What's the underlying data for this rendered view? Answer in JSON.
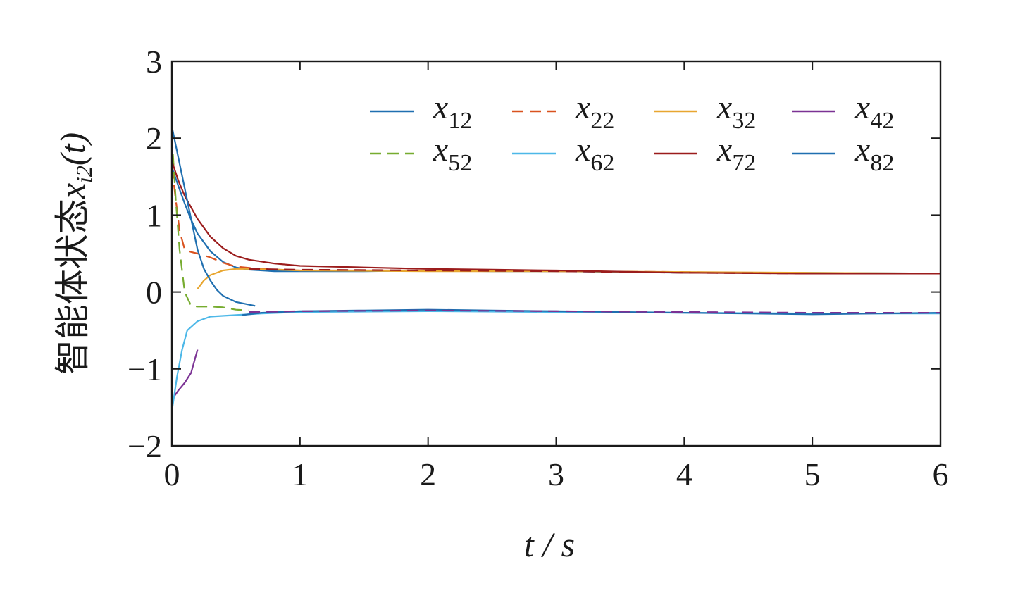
{
  "chart_data": {
    "type": "line",
    "title": "",
    "xlabel": "t / s",
    "ylabel": "智能体状态x_{i2}(t)",
    "ylabel_text": "智能体状态",
    "ylabel_symbol": "x",
    "ylabel_subscript": "i2",
    "ylabel_suffix": "(t)",
    "xlim": [
      0,
      6
    ],
    "ylim": [
      -2,
      3
    ],
    "xticks": [
      0,
      1,
      2,
      3,
      4,
      5,
      6
    ],
    "yticks": [
      -2,
      -1,
      0,
      1,
      2,
      3
    ],
    "xtick_labels": [
      "0",
      "1",
      "2",
      "3",
      "4",
      "5",
      "6"
    ],
    "ytick_labels": [
      "−2",
      "−1",
      "0",
      "1",
      "2",
      "3"
    ],
    "grid": false,
    "legend_position": "top-right",
    "series": [
      {
        "name": "x12",
        "label_main": "x",
        "label_sub": "12",
        "color": "#1f6fb0",
        "dash": "solid",
        "x": [
          0,
          0.05,
          0.1,
          0.15,
          0.2,
          0.3,
          0.4,
          0.5,
          0.6,
          0.8,
          1.0,
          1.5,
          2.0,
          2.5,
          3.0,
          4.0,
          5.0,
          6.0
        ],
        "y": [
          1.62,
          1.38,
          1.15,
          0.94,
          0.76,
          0.53,
          0.39,
          0.32,
          0.29,
          0.27,
          0.27,
          0.27,
          0.28,
          0.27,
          0.27,
          0.25,
          0.25,
          0.24
        ]
      },
      {
        "name": "x22",
        "label_main": "x",
        "label_sub": "22",
        "color": "#d9521f",
        "dash": "dashed",
        "x": [
          0,
          0.03,
          0.06,
          0.1,
          0.15,
          0.2,
          0.3,
          0.4,
          0.5,
          0.7,
          1.0,
          2.0,
          3.0,
          4.0,
          5.0,
          6.0
        ],
        "y": [
          1.62,
          1.2,
          0.8,
          0.55,
          0.52,
          0.5,
          0.45,
          0.38,
          0.33,
          0.3,
          0.28,
          0.28,
          0.27,
          0.26,
          0.24,
          0.24
        ]
      },
      {
        "name": "x32",
        "label_main": "x",
        "label_sub": "32",
        "color": "#e8a630",
        "dash": "solid",
        "x": [
          0.2,
          0.25,
          0.3,
          0.4,
          0.5,
          0.6,
          0.8,
          1.0,
          2.0,
          3.0,
          4.0,
          5.0,
          6.0
        ],
        "y": [
          0.04,
          0.15,
          0.22,
          0.28,
          0.3,
          0.3,
          0.29,
          0.28,
          0.27,
          0.27,
          0.26,
          0.25,
          0.24
        ]
      },
      {
        "name": "x42",
        "label_main": "x",
        "label_sub": "42",
        "color": "#7b3294",
        "dash": "solid",
        "x": [
          0.0,
          0.05,
          0.1,
          0.15,
          0.2
        ],
        "y": [
          -1.4,
          -1.28,
          -1.18,
          -1.05,
          -0.75
        ]
      },
      {
        "name": "x52",
        "label_main": "x",
        "label_sub": "52",
        "color": "#77ac30",
        "dash": "dashed",
        "x": [
          0,
          0.03,
          0.06,
          0.1,
          0.15,
          0.2,
          0.3,
          0.4,
          0.5,
          0.6
        ],
        "y": [
          2.02,
          1.2,
          0.55,
          0.0,
          -0.18,
          -0.19,
          -0.19,
          -0.2,
          -0.23,
          -0.24
        ]
      },
      {
        "name": "x62",
        "label_main": "x",
        "label_sub": "62",
        "color": "#4db8e8",
        "dash": "solid",
        "x": [
          0,
          0.04,
          0.08,
          0.12,
          0.2,
          0.3,
          0.5,
          0.7,
          1.0,
          2.0,
          3.0,
          4.0,
          5.0,
          6.0
        ],
        "y": [
          -1.55,
          -1.1,
          -0.75,
          -0.5,
          -0.38,
          -0.32,
          -0.3,
          -0.28,
          -0.26,
          -0.25,
          -0.26,
          -0.27,
          -0.28,
          -0.28
        ]
      },
      {
        "name": "x72",
        "label_main": "x",
        "label_sub": "72",
        "color": "#9b1c1c",
        "dash": "solid",
        "x": [
          0,
          0.05,
          0.1,
          0.2,
          0.3,
          0.4,
          0.5,
          0.6,
          0.8,
          1.0,
          1.5,
          2.0,
          2.5,
          3.0,
          4.0,
          5.0,
          6.0
        ],
        "y": [
          1.7,
          1.45,
          1.25,
          0.95,
          0.72,
          0.57,
          0.47,
          0.42,
          0.37,
          0.34,
          0.32,
          0.3,
          0.29,
          0.28,
          0.25,
          0.24,
          0.24
        ]
      },
      {
        "name": "x82",
        "label_main": "x",
        "label_sub": "82",
        "color": "#1f6fb0",
        "dash": "solid",
        "x": [
          0,
          0.05,
          0.1,
          0.15,
          0.2,
          0.25,
          0.3,
          0.35,
          0.4,
          0.5,
          0.65
        ],
        "y": [
          2.15,
          1.75,
          1.35,
          0.95,
          0.55,
          0.3,
          0.15,
          0.03,
          -0.05,
          -0.13,
          -0.18
        ]
      },
      {
        "name": "",
        "label_main": "",
        "label_sub": "",
        "color": "#1f6fb0",
        "dash": "solid",
        "x": [
          0.55,
          0.7,
          1.0,
          1.5,
          2.0,
          2.5,
          3.0,
          3.5,
          4.0,
          4.5,
          5.0,
          5.5,
          6.0
        ],
        "y": [
          -0.3,
          -0.27,
          -0.25,
          -0.24,
          -0.23,
          -0.24,
          -0.25,
          -0.26,
          -0.27,
          -0.28,
          -0.29,
          -0.28,
          -0.27
        ]
      },
      {
        "name": "",
        "label_main": "",
        "label_sub": "",
        "color": "#7b3294",
        "dash": "dashed",
        "x": [
          0.6,
          1.0,
          2.0,
          3.0,
          4.0,
          5.0,
          6.0
        ],
        "y": [
          -0.26,
          -0.25,
          -0.24,
          -0.25,
          -0.26,
          -0.27,
          -0.27
        ]
      },
      {
        "name": "",
        "label_main": "",
        "label_sub": "",
        "color": "#9b1c1c",
        "dash": "dashed",
        "x": [
          0.6,
          1.0,
          2.0,
          3.0,
          4.0,
          5.0,
          6.0
        ],
        "y": [
          0.3,
          0.29,
          0.28,
          0.27,
          0.25,
          0.24,
          0.24
        ]
      }
    ]
  }
}
